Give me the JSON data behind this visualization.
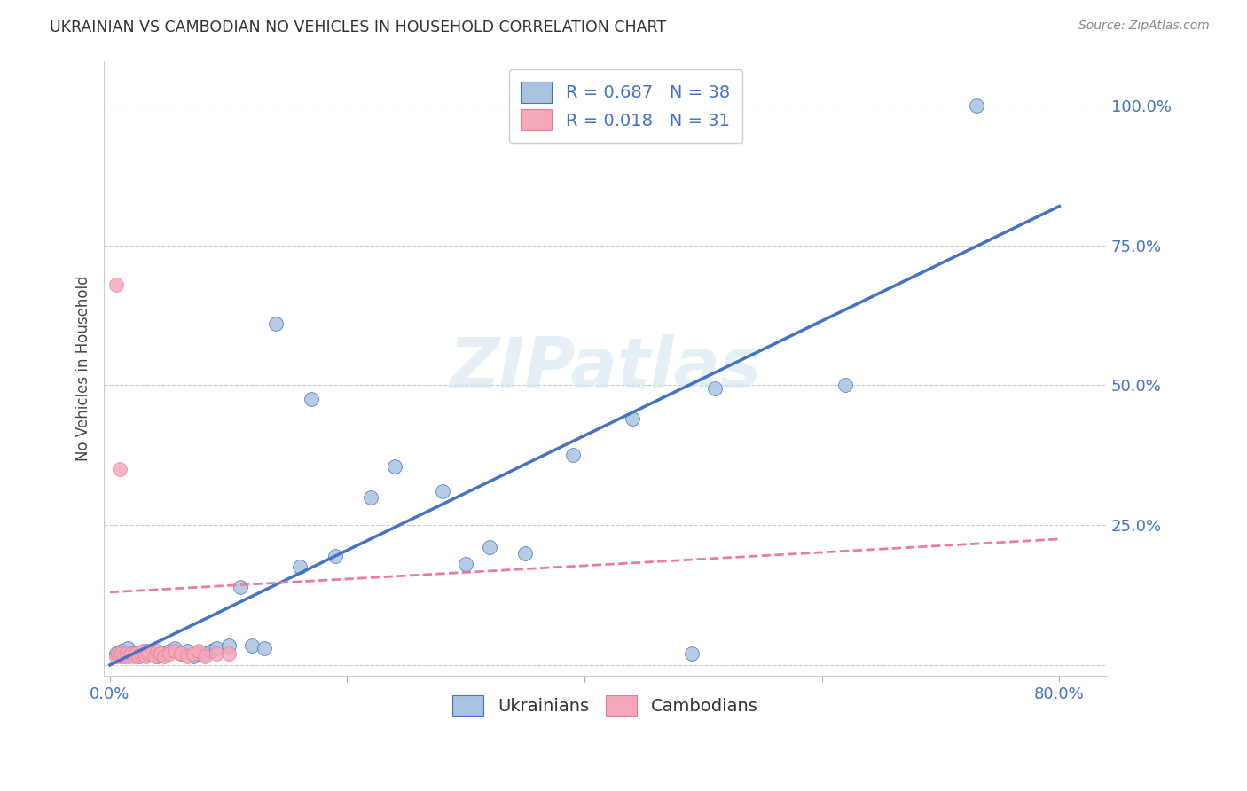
{
  "title": "UKRAINIAN VS CAMBODIAN NO VEHICLES IN HOUSEHOLD CORRELATION CHART",
  "source": "Source: ZipAtlas.com",
  "ylabel": "No Vehicles in Household",
  "background_color": "#ffffff",
  "grid_color": "#cccccc",
  "watermark_text": "ZIPatlas",
  "ukrainian_color": "#a8c4e0",
  "cambodian_color": "#f4a8b8",
  "trendline_blue_color": "#4472c4",
  "trendline_pink_color": "#e87ca0",
  "R_ukrainian": 0.687,
  "N_ukrainian": 38,
  "R_cambodian": 0.018,
  "N_cambodian": 31,
  "legend_label_ukrainian": "R = 0.687   N = 38",
  "legend_label_cambodian": "R = 0.018   N = 31",
  "xlim": [
    -0.005,
    0.84
  ],
  "ylim": [
    -0.02,
    1.08
  ],
  "ytick_values": [
    0.0,
    0.25,
    0.5,
    0.75,
    1.0
  ],
  "ytick_labels": [
    "",
    "25.0%",
    "50.0%",
    "75.0%",
    "100.0%"
  ],
  "xtick_values": [
    0.0,
    0.2,
    0.4,
    0.6,
    0.8
  ],
  "xtick_labels": [
    "0.0%",
    "",
    "",
    "",
    "80.0%"
  ],
  "ukrainian_x": [
    0.005,
    0.01,
    0.015,
    0.02,
    0.025,
    0.03,
    0.035,
    0.04,
    0.045,
    0.05,
    0.055,
    0.06,
    0.065,
    0.07,
    0.075,
    0.08,
    0.085,
    0.09,
    0.1,
    0.11,
    0.12,
    0.13,
    0.14,
    0.16,
    0.17,
    0.19,
    0.22,
    0.24,
    0.28,
    0.3,
    0.32,
    0.35,
    0.39,
    0.44,
    0.49,
    0.51,
    0.62,
    0.73
  ],
  "ukrainian_y": [
    0.02,
    0.025,
    0.03,
    0.02,
    0.015,
    0.025,
    0.02,
    0.015,
    0.02,
    0.025,
    0.03,
    0.02,
    0.025,
    0.015,
    0.02,
    0.02,
    0.025,
    0.03,
    0.035,
    0.14,
    0.035,
    0.03,
    0.61,
    0.175,
    0.475,
    0.195,
    0.3,
    0.355,
    0.31,
    0.18,
    0.21,
    0.2,
    0.375,
    0.44,
    0.02,
    0.495,
    0.5,
    1.0
  ],
  "cambodian_x": [
    0.005,
    0.007,
    0.009,
    0.01,
    0.012,
    0.014,
    0.016,
    0.018,
    0.02,
    0.022,
    0.024,
    0.026,
    0.028,
    0.03,
    0.032,
    0.035,
    0.038,
    0.04,
    0.043,
    0.046,
    0.05,
    0.055,
    0.06,
    0.065,
    0.07,
    0.075,
    0.08,
    0.09,
    0.1,
    0.005,
    0.008
  ],
  "cambodian_y": [
    0.015,
    0.02,
    0.015,
    0.02,
    0.015,
    0.02,
    0.015,
    0.02,
    0.015,
    0.02,
    0.015,
    0.02,
    0.025,
    0.015,
    0.02,
    0.02,
    0.015,
    0.025,
    0.02,
    0.015,
    0.02,
    0.025,
    0.02,
    0.015,
    0.02,
    0.025,
    0.015,
    0.02,
    0.02,
    0.68,
    0.35
  ],
  "blue_trendline_x": [
    0.0,
    0.8
  ],
  "blue_trendline_y": [
    0.0,
    0.82
  ],
  "pink_trendline_x": [
    0.0,
    0.8
  ],
  "pink_trendline_y": [
    0.13,
    0.225
  ]
}
